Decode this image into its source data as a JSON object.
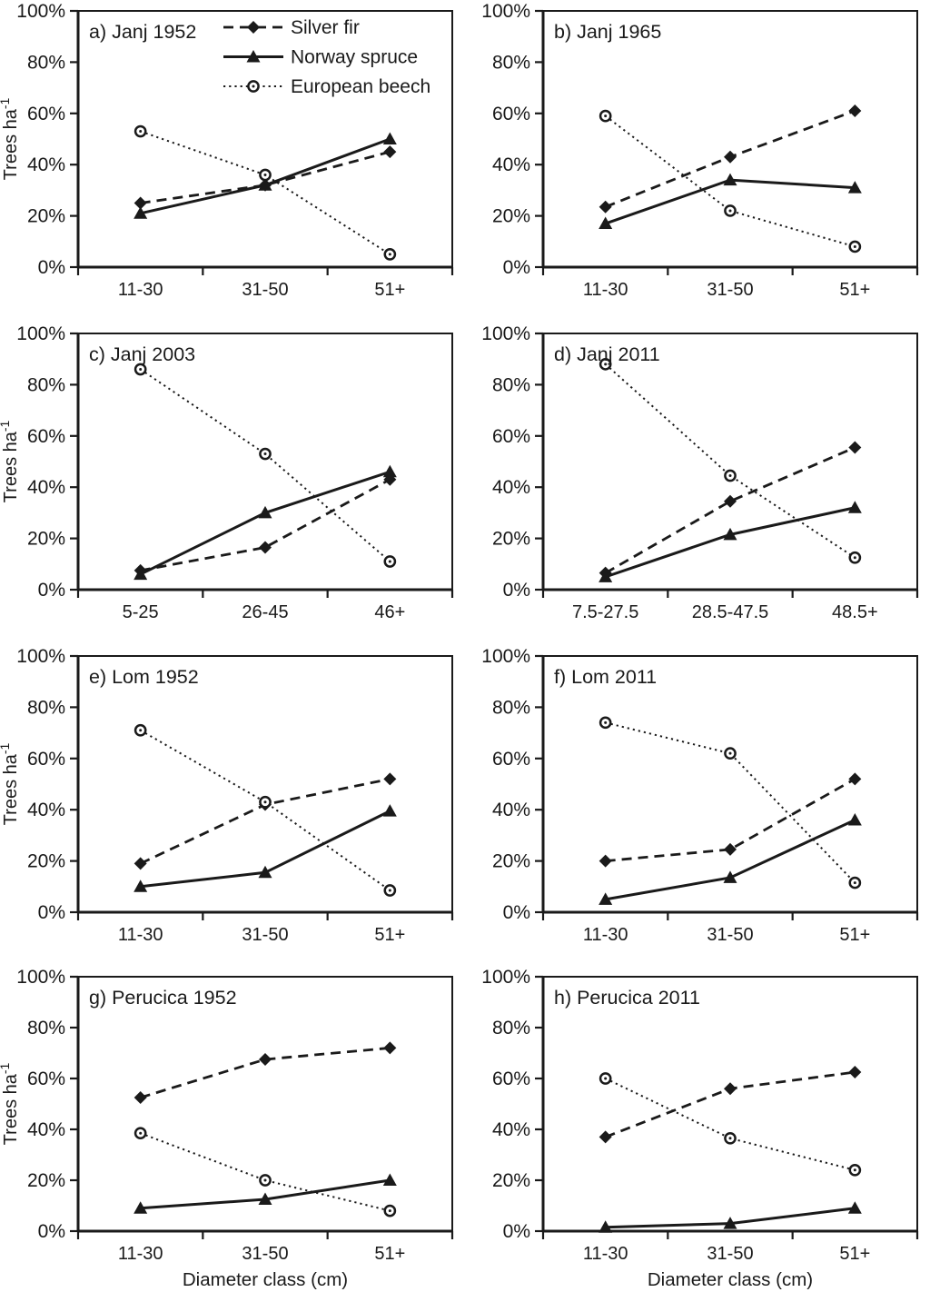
{
  "figure": {
    "y_axis_title": {
      "base": "Trees ha",
      "superscript": "-1"
    },
    "x_axis_title": "Diameter class (cm)",
    "y_tick_labels": [
      "0%",
      "20%",
      "40%",
      "60%",
      "80%",
      "100%"
    ],
    "legend": [
      {
        "label": "Silver fir",
        "marker": "filled-diamond",
        "line_style": "dashed"
      },
      {
        "label": "Norway spruce",
        "marker": "filled-triangle",
        "line_style": "solid"
      },
      {
        "label": "European beech",
        "marker": "open-circle-dot",
        "line_style": "dotted"
      }
    ],
    "colors": {
      "ink": "#1a1a1a",
      "background": "#ffffff"
    }
  },
  "chart_data": [
    {
      "panel": "a",
      "type": "line",
      "title": "a) Janj 1952",
      "categories": [
        "11-30",
        "31-50",
        "51+"
      ],
      "ylim": [
        0,
        100
      ],
      "series": [
        {
          "name": "Silver fir",
          "values": [
            25,
            32,
            45
          ]
        },
        {
          "name": "Norway spruce",
          "values": [
            21,
            32,
            50
          ]
        },
        {
          "name": "European beech",
          "values": [
            53,
            36,
            5
          ]
        }
      ],
      "show_legend": true,
      "show_y_axis_title": true,
      "show_x_axis_title": false
    },
    {
      "panel": "b",
      "type": "line",
      "title": "b) Janj 1965",
      "categories": [
        "11-30",
        "31-50",
        "51+"
      ],
      "ylim": [
        0,
        100
      ],
      "series": [
        {
          "name": "Silver fir",
          "values": [
            23.5,
            43,
            61
          ]
        },
        {
          "name": "Norway spruce",
          "values": [
            17,
            34,
            31
          ]
        },
        {
          "name": "European beech",
          "values": [
            59,
            22,
            8
          ]
        }
      ],
      "show_legend": false,
      "show_y_axis_title": false,
      "show_x_axis_title": false
    },
    {
      "panel": "c",
      "type": "line",
      "title": "c) Janj 2003",
      "categories": [
        "5-25",
        "26-45",
        "46+"
      ],
      "ylim": [
        0,
        100
      ],
      "series": [
        {
          "name": "Silver fir",
          "values": [
            7.5,
            16.5,
            43
          ]
        },
        {
          "name": "Norway spruce",
          "values": [
            6,
            30,
            46
          ]
        },
        {
          "name": "European beech",
          "values": [
            86,
            53,
            11
          ]
        }
      ],
      "show_legend": false,
      "show_y_axis_title": true,
      "show_x_axis_title": false
    },
    {
      "panel": "d",
      "type": "line",
      "title": "d) Janj 2011",
      "categories": [
        "7.5-27.5",
        "28.5-47.5",
        "48.5+"
      ],
      "ylim": [
        0,
        100
      ],
      "series": [
        {
          "name": "Silver fir",
          "values": [
            6.5,
            34.5,
            55.5
          ]
        },
        {
          "name": "Norway spruce",
          "values": [
            5,
            21.5,
            32
          ]
        },
        {
          "name": "European beech",
          "values": [
            88,
            44.5,
            12.5
          ]
        }
      ],
      "show_legend": false,
      "show_y_axis_title": false,
      "show_x_axis_title": false
    },
    {
      "panel": "e",
      "type": "line",
      "title": "e) Lom 1952",
      "categories": [
        "11-30",
        "31-50",
        "51+"
      ],
      "ylim": [
        0,
        100
      ],
      "series": [
        {
          "name": "Silver fir",
          "values": [
            19,
            42,
            52
          ]
        },
        {
          "name": "Norway spruce",
          "values": [
            10,
            15.5,
            39.5
          ]
        },
        {
          "name": "European beech",
          "values": [
            71,
            43,
            8.5
          ]
        }
      ],
      "show_legend": false,
      "show_y_axis_title": true,
      "show_x_axis_title": false
    },
    {
      "panel": "f",
      "type": "line",
      "title": "f) Lom 2011",
      "categories": [
        "11-30",
        "31-50",
        "51+"
      ],
      "ylim": [
        0,
        100
      ],
      "series": [
        {
          "name": "Silver fir",
          "values": [
            20,
            24.5,
            52
          ]
        },
        {
          "name": "Norway spruce",
          "values": [
            5,
            13.5,
            36
          ]
        },
        {
          "name": "European beech",
          "values": [
            74,
            62,
            11.5
          ]
        }
      ],
      "show_legend": false,
      "show_y_axis_title": false,
      "show_x_axis_title": false
    },
    {
      "panel": "g",
      "type": "line",
      "title": "g) Perucica 1952",
      "categories": [
        "11-30",
        "31-50",
        "51+"
      ],
      "ylim": [
        0,
        100
      ],
      "series": [
        {
          "name": "Silver fir",
          "values": [
            52.5,
            67.5,
            72
          ]
        },
        {
          "name": "Norway spruce",
          "values": [
            9,
            12.5,
            20
          ]
        },
        {
          "name": "European beech",
          "values": [
            38.5,
            20,
            8
          ]
        }
      ],
      "show_legend": false,
      "show_y_axis_title": true,
      "show_x_axis_title": true
    },
    {
      "panel": "h",
      "type": "line",
      "title": "h) Perucica 2011",
      "categories": [
        "11-30",
        "31-50",
        "51+"
      ],
      "ylim": [
        0,
        100
      ],
      "series": [
        {
          "name": "Silver fir",
          "values": [
            37,
            56,
            62.5
          ]
        },
        {
          "name": "Norway spruce",
          "values": [
            1.5,
            3,
            9
          ]
        },
        {
          "name": "European beech",
          "values": [
            60,
            36.5,
            24
          ]
        }
      ],
      "show_legend": false,
      "show_y_axis_title": false,
      "show_x_axis_title": true
    }
  ]
}
